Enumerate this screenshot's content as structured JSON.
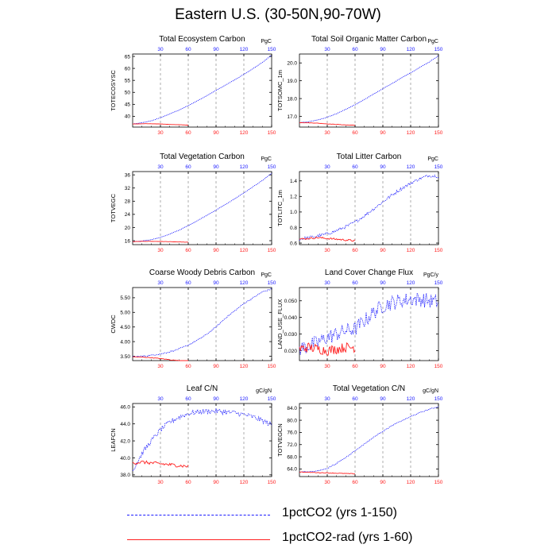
{
  "title": "Eastern U.S. (30-50N,90-70W)",
  "colors": {
    "exp1": "#1a1aff",
    "exp2": "#ff2020",
    "axis": "#000000",
    "grid": "#9a9a9a"
  },
  "legend": [
    {
      "label": "1pctCO2 (yrs 1-150)",
      "style": "dashed",
      "color": "#1a1aff"
    },
    {
      "label": "1pctCO2-rad (yrs 1-60)",
      "style": "solid",
      "color": "#ff2020"
    }
  ],
  "chart_data": [
    {
      "type": "line",
      "title": "Total Ecosystem Carbon",
      "ylabel": "TOTECOSYSC",
      "units": "PgC",
      "xlim": [
        0,
        150
      ],
      "xticks": [
        30,
        60,
        90,
        120,
        150
      ],
      "ylim": [
        35.5,
        66
      ],
      "yticks": [
        40,
        45,
        50,
        55,
        60,
        65
      ],
      "ytick_labels": [
        "40",
        "45",
        "50",
        "55",
        "60",
        "65"
      ],
      "series": [
        {
          "key": "exp1",
          "x": [
            0,
            10,
            20,
            30,
            40,
            50,
            60,
            70,
            80,
            90,
            100,
            110,
            120,
            130,
            140,
            150
          ],
          "values": [
            36.8,
            37.3,
            38.1,
            39.4,
            41.0,
            42.6,
            44.5,
            46.5,
            48.6,
            50.8,
            53.0,
            55.2,
            57.5,
            59.9,
            62.5,
            65.5
          ],
          "noise": 0.05
        },
        {
          "key": "exp2",
          "x": [
            0,
            10,
            20,
            30,
            40,
            50,
            60
          ],
          "values": [
            36.8,
            36.9,
            36.9,
            36.8,
            36.6,
            36.5,
            36.3
          ],
          "noise": 0.03
        }
      ]
    },
    {
      "type": "line",
      "title": "Total Soil Organic Matter Carbon",
      "ylabel": "TOTSOMC_1m",
      "units": "PgC",
      "xlim": [
        0,
        150
      ],
      "xticks": [
        30,
        60,
        90,
        120,
        150
      ],
      "ylim": [
        16.4,
        20.5
      ],
      "yticks": [
        17,
        18,
        19,
        20
      ],
      "ytick_labels": [
        "17.0",
        "18.0",
        "19.0",
        "20.0"
      ],
      "series": [
        {
          "key": "exp1",
          "x": [
            0,
            10,
            20,
            30,
            40,
            50,
            60,
            70,
            80,
            90,
            100,
            110,
            120,
            130,
            140,
            150
          ],
          "values": [
            16.65,
            16.7,
            16.8,
            16.95,
            17.15,
            17.4,
            17.65,
            17.95,
            18.25,
            18.55,
            18.85,
            19.15,
            19.45,
            19.75,
            20.05,
            20.4
          ],
          "noise": 0.01
        },
        {
          "key": "exp2",
          "x": [
            0,
            10,
            20,
            30,
            40,
            50,
            60
          ],
          "values": [
            16.65,
            16.64,
            16.62,
            16.58,
            16.55,
            16.52,
            16.5
          ],
          "noise": 0.01
        }
      ]
    },
    {
      "type": "line",
      "title": "Total Vegetation Carbon",
      "ylabel": "TOTVEGC",
      "units": "PgC",
      "xlim": [
        0,
        150
      ],
      "xticks": [
        30,
        60,
        90,
        120,
        150
      ],
      "ylim": [
        14.8,
        37
      ],
      "yticks": [
        16,
        20,
        24,
        28,
        32,
        36
      ],
      "ytick_labels": [
        "16",
        "20",
        "24",
        "28",
        "32",
        "36"
      ],
      "series": [
        {
          "key": "exp1",
          "x": [
            0,
            10,
            20,
            30,
            40,
            50,
            60,
            70,
            80,
            90,
            100,
            110,
            120,
            130,
            140,
            150
          ],
          "values": [
            15.7,
            15.9,
            16.3,
            17.0,
            18.0,
            19.2,
            20.6,
            22.1,
            23.7,
            25.3,
            27.0,
            28.7,
            30.5,
            32.4,
            34.3,
            36.5
          ],
          "noise": 0.04
        },
        {
          "key": "exp2",
          "x": [
            0,
            10,
            20,
            30,
            40,
            50,
            60
          ],
          "values": [
            15.7,
            15.8,
            15.8,
            15.75,
            15.7,
            15.6,
            15.55
          ],
          "noise": 0.03
        }
      ]
    },
    {
      "type": "line",
      "title": "Total Litter Carbon",
      "ylabel": "TOTLITC_1m",
      "units": "PgC",
      "xlim": [
        0,
        150
      ],
      "xticks": [
        30,
        60,
        90,
        120,
        150
      ],
      "ylim": [
        0.58,
        1.52
      ],
      "yticks": [
        0.6,
        0.8,
        1.0,
        1.2,
        1.4
      ],
      "ytick_labels": [
        "0.6",
        "0.8",
        "1.0",
        "1.2",
        "1.4"
      ],
      "series": [
        {
          "key": "exp1",
          "x": [
            0,
            10,
            20,
            30,
            40,
            50,
            60,
            70,
            80,
            90,
            100,
            110,
            120,
            130,
            140,
            150
          ],
          "values": [
            0.65,
            0.67,
            0.69,
            0.72,
            0.76,
            0.81,
            0.87,
            0.95,
            1.04,
            1.13,
            1.22,
            1.3,
            1.37,
            1.43,
            1.47,
            1.46
          ],
          "noise": 0.02
        },
        {
          "key": "exp2",
          "x": [
            0,
            10,
            20,
            30,
            40,
            50,
            60
          ],
          "values": [
            0.65,
            0.66,
            0.67,
            0.66,
            0.65,
            0.64,
            0.63
          ],
          "noise": 0.012
        }
      ]
    },
    {
      "type": "line",
      "title": "Coarse Woody Debris Carbon",
      "ylabel": "CWDC",
      "units": "PgC",
      "xlim": [
        0,
        150
      ],
      "xticks": [
        30,
        60,
        90,
        120,
        150
      ],
      "ylim": [
        3.35,
        5.85
      ],
      "yticks": [
        3.5,
        4.0,
        4.5,
        5.0,
        5.5
      ],
      "ytick_labels": [
        "3.50",
        "4.00",
        "4.50",
        "5.00",
        "5.50"
      ],
      "series": [
        {
          "key": "exp1",
          "x": [
            0,
            10,
            20,
            30,
            40,
            50,
            60,
            70,
            80,
            90,
            100,
            110,
            120,
            130,
            140,
            150
          ],
          "values": [
            3.48,
            3.5,
            3.53,
            3.58,
            3.65,
            3.75,
            3.88,
            4.05,
            4.25,
            4.5,
            4.8,
            5.05,
            5.3,
            5.5,
            5.7,
            5.8
          ],
          "noise": 0.02
        },
        {
          "key": "exp2",
          "x": [
            0,
            10,
            20,
            30,
            40,
            50,
            60
          ],
          "values": [
            3.48,
            3.47,
            3.45,
            3.42,
            3.38,
            3.35,
            3.33
          ],
          "noise": 0.01
        }
      ]
    },
    {
      "type": "line",
      "title": "Land Cover Change Flux",
      "ylabel": "LAND_USE_FLUX",
      "units": "PgC/y",
      "xlim": [
        0,
        150
      ],
      "xticks": [
        30,
        60,
        90,
        120,
        150
      ],
      "ylim": [
        0.014,
        0.058
      ],
      "yticks": [
        0.02,
        0.03,
        0.04,
        0.05
      ],
      "ytick_labels": [
        "0.020",
        "0.030",
        "0.040",
        "0.050"
      ],
      "series": [
        {
          "key": "exp1",
          "x": [
            0,
            10,
            20,
            30,
            40,
            50,
            60,
            70,
            80,
            90,
            100,
            110,
            120,
            130,
            140,
            150
          ],
          "values": [
            0.021,
            0.023,
            0.025,
            0.028,
            0.03,
            0.032,
            0.033,
            0.038,
            0.043,
            0.047,
            0.049,
            0.05,
            0.051,
            0.051,
            0.05,
            0.049
          ],
          "noise": 0.0045
        },
        {
          "key": "exp2",
          "x": [
            0,
            10,
            20,
            30,
            40,
            50,
            60
          ],
          "values": [
            0.021,
            0.022,
            0.021,
            0.02,
            0.021,
            0.022,
            0.022
          ],
          "noise": 0.003
        }
      ]
    },
    {
      "type": "line",
      "title": "Leaf C/N",
      "ylabel": "LEAFCN",
      "units": "gC/gN",
      "xlim": [
        0,
        150
      ],
      "xticks": [
        30,
        60,
        90,
        120,
        150
      ],
      "ylim": [
        37.8,
        46.4
      ],
      "yticks": [
        38,
        40,
        42,
        44,
        46
      ],
      "ytick_labels": [
        "38.0",
        "40.0",
        "42.0",
        "44.0",
        "46.0"
      ],
      "series": [
        {
          "key": "exp1",
          "x": [
            0,
            10,
            20,
            30,
            40,
            50,
            60,
            70,
            80,
            90,
            100,
            110,
            120,
            130,
            140,
            150
          ],
          "values": [
            38.5,
            40.5,
            42.0,
            43.3,
            44.2,
            44.8,
            45.2,
            45.4,
            45.5,
            45.5,
            45.4,
            45.3,
            45.1,
            44.8,
            44.4,
            43.9
          ],
          "noise": 0.3
        },
        {
          "key": "exp2",
          "x": [
            0,
            10,
            20,
            30,
            40,
            50,
            60
          ],
          "values": [
            39.4,
            39.5,
            39.4,
            39.3,
            39.2,
            39.1,
            39.0
          ],
          "noise": 0.2
        }
      ]
    },
    {
      "type": "line",
      "title": "Total Vegetation C/N",
      "ylabel": "TOTVEGCN",
      "units": "gC/gN",
      "xlim": [
        0,
        150
      ],
      "xticks": [
        30,
        60,
        90,
        120,
        150
      ],
      "ylim": [
        61.5,
        85.5
      ],
      "yticks": [
        64,
        68,
        72,
        76,
        80,
        84
      ],
      "ytick_labels": [
        "64.0",
        "68.0",
        "72.0",
        "76.0",
        "80.0",
        "84.0"
      ],
      "series": [
        {
          "key": "exp1",
          "x": [
            0,
            10,
            20,
            30,
            40,
            50,
            60,
            70,
            80,
            90,
            100,
            110,
            120,
            130,
            140,
            150
          ],
          "values": [
            63.0,
            63.1,
            63.4,
            64.2,
            65.8,
            67.8,
            70.0,
            72.2,
            74.4,
            76.4,
            78.2,
            79.8,
            81.2,
            82.5,
            83.6,
            84.5
          ],
          "noise": 0.15
        },
        {
          "key": "exp2",
          "x": [
            0,
            10,
            20,
            30,
            40,
            50,
            60
          ],
          "values": [
            63.0,
            62.9,
            62.8,
            62.7,
            62.6,
            62.5,
            62.4
          ],
          "noise": 0.1
        }
      ]
    }
  ]
}
